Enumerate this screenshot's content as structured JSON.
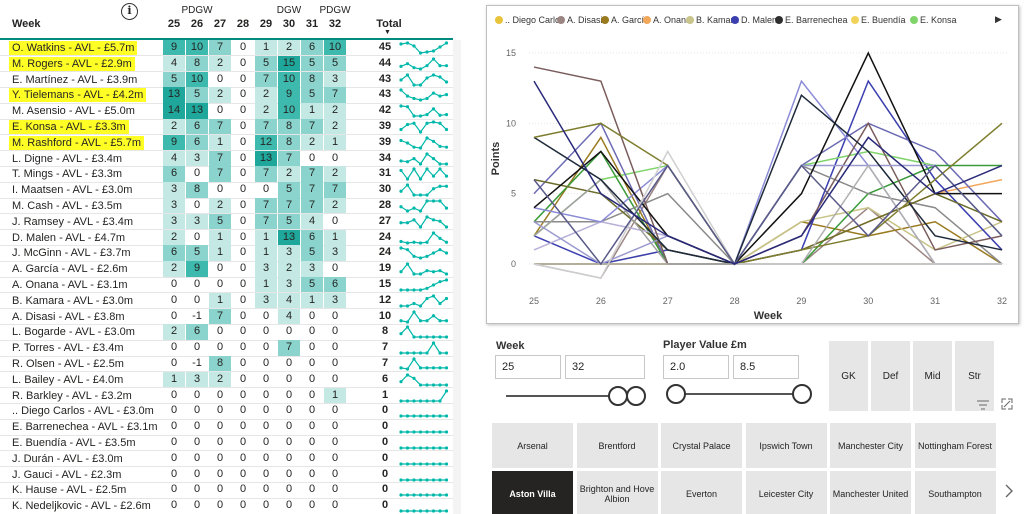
{
  "table": {
    "week_header": "Week",
    "info_icon": "i",
    "total_header": "Total",
    "sort_icon": "▼",
    "weeks": [
      25,
      26,
      27,
      28,
      29,
      30,
      31,
      32
    ],
    "gw_labels": [
      {
        "week": 26,
        "label": "PDGW"
      },
      {
        "week": 30,
        "label": "DGW"
      },
      {
        "week": 32,
        "label": "PDGW"
      }
    ],
    "rows": [
      {
        "name": "O. Watkins - AVL - £5.7m",
        "highlight": true,
        "values": [
          9,
          10,
          7,
          0,
          1,
          2,
          6,
          10
        ],
        "total": 45
      },
      {
        "name": "M. Rogers - AVL - £2.9m",
        "highlight": true,
        "values": [
          4,
          8,
          2,
          0,
          5,
          15,
          5,
          5
        ],
        "total": 44
      },
      {
        "name": "E. Martínez - AVL - £3.9m",
        "highlight": false,
        "values": [
          5,
          10,
          0,
          0,
          7,
          10,
          8,
          3
        ],
        "total": 43
      },
      {
        "name": "Y. Tielemans - AVL - £4.2m",
        "highlight": true,
        "values": [
          13,
          5,
          2,
          0,
          2,
          9,
          5,
          7
        ],
        "total": 43
      },
      {
        "name": "M. Asensio - AVL - £5.0m",
        "highlight": false,
        "values": [
          14,
          13,
          0,
          0,
          2,
          10,
          1,
          2
        ],
        "total": 42
      },
      {
        "name": "E. Konsa - AVL - £3.3m",
        "highlight": true,
        "values": [
          2,
          6,
          7,
          0,
          7,
          8,
          7,
          2
        ],
        "total": 39
      },
      {
        "name": "M. Rashford - AVL - £5.7m",
        "highlight": true,
        "values": [
          9,
          6,
          1,
          0,
          12,
          8,
          2,
          1
        ],
        "total": 39
      },
      {
        "name": "L. Digne - AVL - £3.4m",
        "highlight": false,
        "values": [
          4,
          3,
          7,
          0,
          13,
          7,
          0,
          0
        ],
        "total": 34
      },
      {
        "name": "T. Mings - AVL - £3.3m",
        "highlight": false,
        "values": [
          6,
          0,
          7,
          0,
          7,
          2,
          7,
          2
        ],
        "total": 31
      },
      {
        "name": "I. Maatsen - AVL - £3.0m",
        "highlight": false,
        "values": [
          3,
          8,
          0,
          0,
          0,
          5,
          7,
          7
        ],
        "total": 30
      },
      {
        "name": "M. Cash - AVL - £3.5m",
        "highlight": false,
        "values": [
          3,
          0,
          2,
          0,
          7,
          7,
          7,
          2
        ],
        "total": 28
      },
      {
        "name": "J. Ramsey - AVL - £3.4m",
        "highlight": false,
        "values": [
          3,
          3,
          5,
          0,
          7,
          5,
          4,
          0
        ],
        "total": 27
      },
      {
        "name": "D. Malen - AVL - £4.7m",
        "highlight": false,
        "values": [
          2,
          0,
          1,
          0,
          1,
          13,
          6,
          1
        ],
        "total": 24
      },
      {
        "name": "J. McGinn - AVL - £3.7m",
        "highlight": false,
        "values": [
          6,
          5,
          1,
          0,
          1,
          3,
          5,
          3
        ],
        "total": 24
      },
      {
        "name": "A. García - AVL - £2.6m",
        "highlight": false,
        "values": [
          2,
          9,
          0,
          0,
          3,
          2,
          3,
          0
        ],
        "total": 19
      },
      {
        "name": "A. Onana - AVL - £3.1m",
        "highlight": false,
        "values": [
          0,
          0,
          0,
          0,
          1,
          3,
          5,
          6
        ],
        "total": 15
      },
      {
        "name": "B. Kamara - AVL - £3.0m",
        "highlight": false,
        "values": [
          0,
          0,
          1,
          0,
          3,
          4,
          1,
          3
        ],
        "total": 12
      },
      {
        "name": "A. Disasi - AVL - £3.8m",
        "highlight": false,
        "values": [
          0,
          -1,
          7,
          0,
          0,
          4,
          0,
          0
        ],
        "total": 10
      },
      {
        "name": "L. Bogarde - AVL - £3.0m",
        "highlight": false,
        "values": [
          2,
          6,
          0,
          0,
          0,
          0,
          0,
          0
        ],
        "total": 8
      },
      {
        "name": "P. Torres - AVL - £3.4m",
        "highlight": false,
        "values": [
          0,
          0,
          0,
          0,
          0,
          7,
          0,
          0
        ],
        "total": 7
      },
      {
        "name": "R. Olsen - AVL - £2.5m",
        "highlight": false,
        "values": [
          0,
          -1,
          8,
          0,
          0,
          0,
          0,
          0
        ],
        "total": 7
      },
      {
        "name": "L. Bailey - AVL - £4.0m",
        "highlight": false,
        "values": [
          1,
          3,
          2,
          0,
          0,
          0,
          0,
          0
        ],
        "total": 6
      },
      {
        "name": "R. Barkley - AVL - £3.2m",
        "highlight": false,
        "values": [
          0,
          0,
          0,
          0,
          0,
          0,
          0,
          1
        ],
        "total": 1
      },
      {
        "name": ".. Diego Carlos - AVL - £3.0m",
        "highlight": false,
        "values": [
          0,
          0,
          0,
          0,
          0,
          0,
          0,
          0
        ],
        "total": 0
      },
      {
        "name": "E. Barrenechea - AVL - £3.1m",
        "highlight": false,
        "values": [
          0,
          0,
          0,
          0,
          0,
          0,
          0,
          0
        ],
        "total": 0
      },
      {
        "name": "E. Buendía - AVL - £3.5m",
        "highlight": false,
        "values": [
          0,
          0,
          0,
          0,
          0,
          0,
          0,
          0
        ],
        "total": 0
      },
      {
        "name": "J. Durán - AVL - £3.0m",
        "highlight": false,
        "values": [
          0,
          0,
          0,
          0,
          0,
          0,
          0,
          0
        ],
        "total": 0
      },
      {
        "name": "J. Gauci - AVL - £2.3m",
        "highlight": false,
        "values": [
          0,
          0,
          0,
          0,
          0,
          0,
          0,
          0
        ],
        "total": 0
      },
      {
        "name": "K. Hause - AVL - £2.5m",
        "highlight": false,
        "values": [
          0,
          0,
          0,
          0,
          0,
          0,
          0,
          0
        ],
        "total": 0
      },
      {
        "name": "K. Nedeljkovic - AVL - £2.6m",
        "highlight": false,
        "values": [
          0,
          0,
          0,
          0,
          0,
          0,
          0,
          0
        ],
        "total": 0
      }
    ]
  },
  "chart_data": {
    "type": "line",
    "xlabel": "Week",
    "ylabel": "Points",
    "x": [
      25,
      26,
      27,
      28,
      29,
      30,
      31,
      32
    ],
    "ylim": [
      0,
      15
    ],
    "yticks": [
      0,
      5,
      10,
      15
    ],
    "legend_position": "top",
    "legend_more_icon": "▶",
    "series": [
      {
        "name": ".. Diego Carlos",
        "color": "#e8c43c",
        "in_legend": true,
        "values": [
          0,
          0,
          0,
          0,
          0,
          0,
          0,
          0
        ]
      },
      {
        "name": "A. Disasi",
        "color": "#9b8583",
        "in_legend": true,
        "values": [
          0,
          -1,
          7,
          0,
          0,
          4,
          0,
          0
        ]
      },
      {
        "name": "A. García",
        "color": "#9a7a1e",
        "in_legend": true,
        "values": [
          2,
          9,
          0,
          0,
          3,
          2,
          3,
          0
        ]
      },
      {
        "name": "A. Onana",
        "color": "#f2a65a",
        "in_legend": true,
        "values": [
          0,
          0,
          0,
          0,
          1,
          3,
          5,
          6
        ]
      },
      {
        "name": "B. Kamara",
        "color": "#c9c48a",
        "in_legend": true,
        "values": [
          0,
          0,
          1,
          0,
          3,
          4,
          1,
          3
        ]
      },
      {
        "name": "D. Malen",
        "color": "#3b3fb0",
        "in_legend": true,
        "values": [
          2,
          0,
          1,
          0,
          1,
          13,
          6,
          1
        ]
      },
      {
        "name": "E. Barrenechea",
        "color": "#2f2f2f",
        "in_legend": true,
        "values": [
          0,
          0,
          0,
          0,
          0,
          0,
          0,
          0
        ]
      },
      {
        "name": "E. Buendía",
        "color": "#f2d35a",
        "in_legend": true,
        "values": [
          0,
          0,
          0,
          0,
          0,
          0,
          0,
          0
        ]
      },
      {
        "name": "E. Konsa",
        "color": "#7fd46a",
        "in_legend": true,
        "values": [
          2,
          6,
          7,
          0,
          7,
          8,
          7,
          2
        ]
      },
      {
        "name": "E. Martínez",
        "color": "#6d6bb3",
        "in_legend": false,
        "values": [
          5,
          10,
          0,
          0,
          7,
          10,
          8,
          3
        ]
      },
      {
        "name": "I. Maatsen",
        "color": "#3a9b3a",
        "in_legend": false,
        "values": [
          3,
          8,
          0,
          0,
          0,
          5,
          7,
          7
        ]
      },
      {
        "name": "J. Ramsey",
        "color": "#8a8a8a",
        "in_legend": false,
        "values": [
          3,
          3,
          5,
          0,
          7,
          5,
          4,
          0
        ]
      },
      {
        "name": "J. McGinn",
        "color": "#6b6b2a",
        "in_legend": false,
        "values": [
          6,
          5,
          1,
          0,
          1,
          3,
          5,
          3
        ]
      },
      {
        "name": "L. Bailey",
        "color": "#b8b0d8",
        "in_legend": false,
        "values": [
          1,
          3,
          2,
          0,
          0,
          0,
          0,
          0
        ]
      },
      {
        "name": "L. Bogarde",
        "color": "#a0a0a0",
        "in_legend": false,
        "values": [
          2,
          6,
          0,
          0,
          0,
          0,
          0,
          0
        ]
      },
      {
        "name": "L. Digne",
        "color": "#8c8cd8",
        "in_legend": false,
        "values": [
          4,
          3,
          7,
          0,
          13,
          7,
          0,
          0
        ]
      },
      {
        "name": "M. Asensio",
        "color": "#7a5c5c",
        "in_legend": false,
        "values": [
          14,
          13,
          0,
          0,
          2,
          10,
          1,
          2
        ]
      },
      {
        "name": "M. Cash",
        "color": "#9b9bcf",
        "in_legend": false,
        "values": [
          3,
          0,
          2,
          0,
          7,
          7,
          7,
          2
        ]
      },
      {
        "name": "M. Rashford",
        "color": "#1e2a3a",
        "in_legend": false,
        "values": [
          9,
          6,
          1,
          0,
          12,
          8,
          2,
          1
        ]
      },
      {
        "name": "M. Rogers",
        "color": "#111111",
        "in_legend": false,
        "values": [
          4,
          8,
          2,
          0,
          5,
          15,
          5,
          5
        ]
      },
      {
        "name": "O. Watkins",
        "color": "#7d7d2e",
        "in_legend": false,
        "values": [
          9,
          10,
          7,
          0,
          1,
          2,
          6,
          10
        ]
      },
      {
        "name": "P. Torres",
        "color": "#b0b0b0",
        "in_legend": false,
        "values": [
          0,
          0,
          0,
          0,
          0,
          7,
          0,
          0
        ]
      },
      {
        "name": "R. Olsen",
        "color": "#d0d0d0",
        "in_legend": false,
        "values": [
          0,
          -1,
          8,
          0,
          0,
          0,
          0,
          0
        ]
      },
      {
        "name": "T. Mings",
        "color": "#5a5a8a",
        "in_legend": false,
        "values": [
          6,
          0,
          7,
          0,
          7,
          2,
          7,
          2
        ]
      },
      {
        "name": "Y. Tielemans",
        "color": "#2a2a7a",
        "in_legend": false,
        "values": [
          13,
          5,
          2,
          0,
          2,
          9,
          5,
          7
        ]
      }
    ]
  },
  "filters": {
    "week": {
      "title": "Week",
      "min": "25",
      "max": "32",
      "low": 25,
      "high": 32,
      "range": [
        25,
        32
      ]
    },
    "value": {
      "title": "Player Value £m",
      "min": "2.0",
      "max": "8.5",
      "low": 2.0,
      "high": 8.5,
      "range": [
        2.0,
        8.5
      ]
    },
    "positions": [
      "GK",
      "Def",
      "Mid",
      "Str"
    ],
    "filter_icon": "filter-lines-icon",
    "focus_icon": "expand-icon",
    "next_icon": "chevron-right-icon",
    "teams": [
      {
        "label": "Arsenal",
        "selected": false
      },
      {
        "label": "Brentford",
        "selected": false
      },
      {
        "label": "Crystal Palace",
        "selected": false
      },
      {
        "label": "Ipswich Town",
        "selected": false
      },
      {
        "label": "Manchester City",
        "selected": false
      },
      {
        "label": "Nottingham Forest",
        "selected": false
      },
      {
        "label": "Aston Villa",
        "selected": true
      },
      {
        "label": "Brighton and Hove Albion",
        "selected": false
      },
      {
        "label": "Everton",
        "selected": false
      },
      {
        "label": "Leicester City",
        "selected": false
      },
      {
        "label": "Manchester United",
        "selected": false
      },
      {
        "label": "Southampton",
        "selected": false
      }
    ]
  },
  "colors": {
    "accent": "#01b8aa",
    "header_line": "#008a80",
    "highlight": "#ffff26",
    "selected_team": "#252423"
  }
}
